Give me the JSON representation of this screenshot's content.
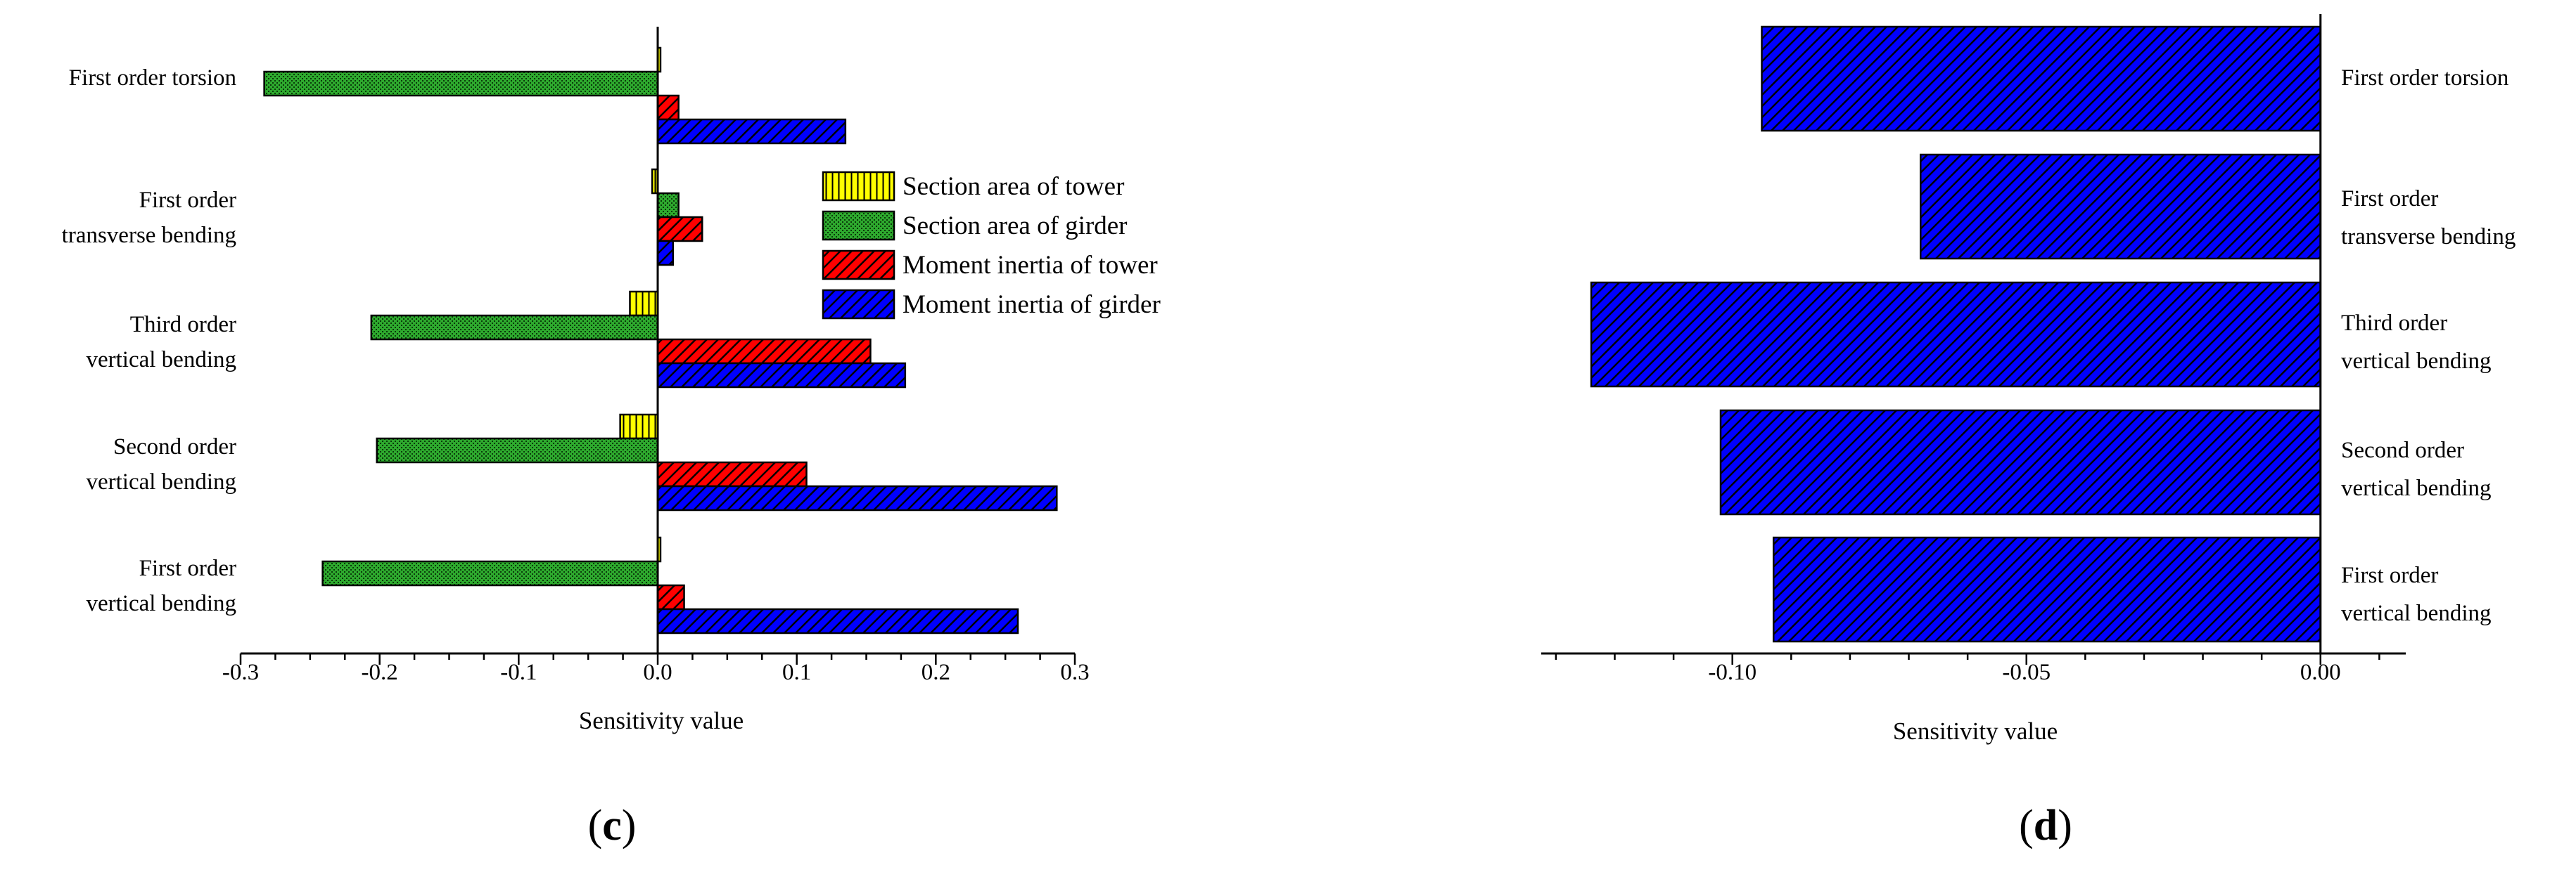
{
  "colors": {
    "tower_area": "#ffff00",
    "girder_area": "#2eaa2e",
    "tower_inertia": "#ff0000",
    "girder_inertia": "#0000ff"
  },
  "panels": {
    "c": {
      "open": "(",
      "letter": "c",
      "close": ")"
    },
    "d": {
      "open": "(",
      "letter": "d",
      "close": ")"
    }
  },
  "chart_data": [
    {
      "type": "bar",
      "orientation": "horizontal",
      "panel": "c",
      "categories": [
        [
          "First order torsion"
        ],
        [
          "First order",
          "transverse bending"
        ],
        [
          "Third order",
          "vertical bending"
        ],
        [
          "Second order",
          "vertical bending"
        ],
        [
          "First order",
          "vertical bending"
        ]
      ],
      "series": [
        {
          "name": "Section area of tower",
          "pattern": "vlines",
          "color": "#ffff00",
          "values": [
            0.002,
            -0.004,
            -0.02,
            -0.027,
            0.002
          ]
        },
        {
          "name": "Section area of girder",
          "pattern": "dots",
          "color": "#2eaa2e",
          "values": [
            -0.283,
            0.015,
            -0.206,
            -0.202,
            -0.241
          ]
        },
        {
          "name": "Moment inertia of tower",
          "pattern": "diag",
          "color": "#ff0000",
          "values": [
            0.015,
            0.032,
            0.153,
            0.107,
            0.019
          ]
        },
        {
          "name": "Moment inertia of girder",
          "pattern": "diag",
          "color": "#0000ff",
          "values": [
            0.135,
            0.011,
            0.178,
            0.287,
            0.259
          ]
        }
      ],
      "xlabel": "Sensitivity value",
      "xlim": [
        -0.3,
        0.3
      ],
      "xticks": [
        -0.3,
        -0.2,
        -0.1,
        0.0,
        0.1,
        0.2,
        0.3
      ],
      "xtick_labels": [
        "-0.3",
        "-0.2",
        "-0.1",
        "0.0",
        "0.1",
        "0.2",
        "0.3"
      ],
      "legend": "inside-right"
    },
    {
      "type": "bar",
      "orientation": "horizontal",
      "panel": "d",
      "categories": [
        [
          "First order torsion"
        ],
        [
          "First order",
          "transverse bending"
        ],
        [
          "Third order",
          "vertical bending"
        ],
        [
          "Second order",
          "vertical bending"
        ],
        [
          "First order",
          "vertical bending"
        ]
      ],
      "series": [
        {
          "pattern": "diag",
          "color": "#0000ff",
          "values": [
            -0.095,
            -0.068,
            -0.124,
            -0.102,
            -0.093
          ]
        }
      ],
      "xlabel": "Sensitivity value",
      "xlim": [
        -0.1325,
        0.0145
      ],
      "xticks": [
        -0.1,
        -0.05,
        0.0
      ],
      "xtick_labels": [
        "-0.10",
        "-0.05",
        "0.00"
      ],
      "minor_tick_step": 0.01,
      "legend": "none"
    }
  ]
}
